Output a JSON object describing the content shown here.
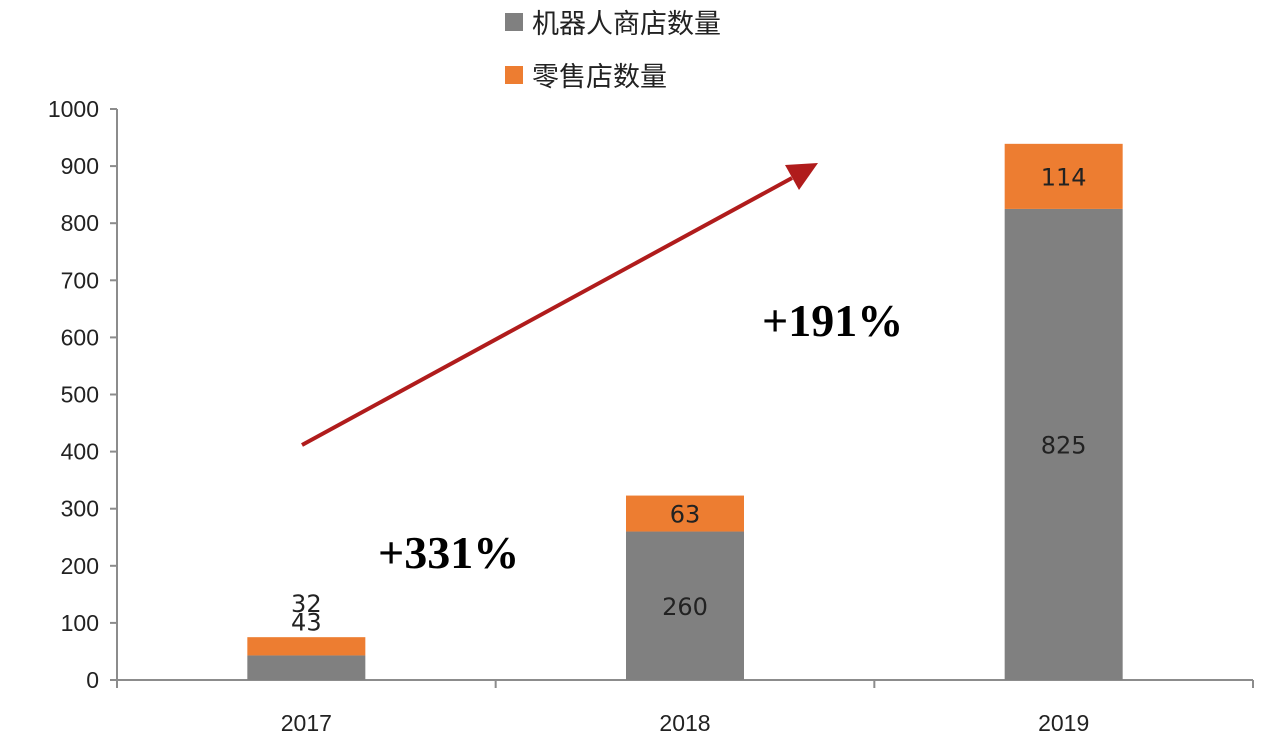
{
  "chart_data": {
    "type": "bar",
    "stacked": true,
    "categories": [
      "2017",
      "2018",
      "2019"
    ],
    "series": [
      {
        "name": "机器人商店数量",
        "values": [
          43,
          260,
          825
        ],
        "color": "#808080"
      },
      {
        "name": "零售店数量",
        "values": [
          32,
          63,
          114
        ],
        "color": "#ED7D31"
      }
    ],
    "ylim": [
      0,
      1000
    ],
    "yticks": [
      0,
      100,
      200,
      300,
      400,
      500,
      600,
      700,
      800,
      900,
      1000
    ],
    "grid": false,
    "legend_position": "top",
    "annotations": [
      {
        "text": "+331%",
        "between": [
          "2017",
          "2018"
        ]
      },
      {
        "text": "+191%",
        "between": [
          "2018",
          "2019"
        ]
      }
    ],
    "trend_arrow_color": "#B01C1C"
  }
}
